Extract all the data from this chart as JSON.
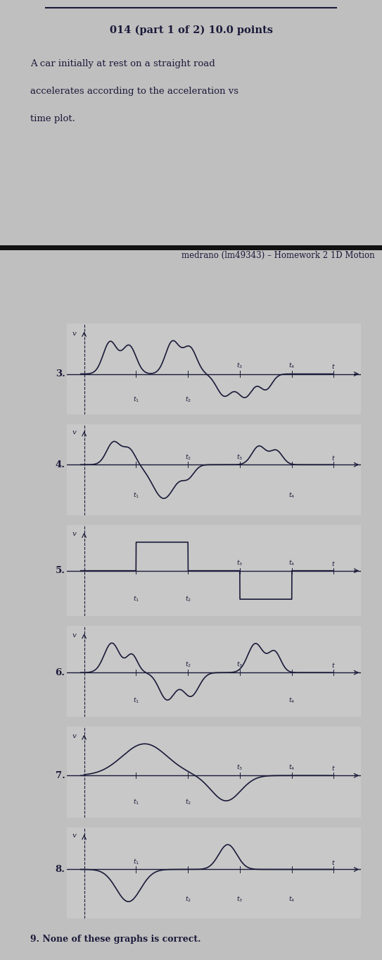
{
  "title": "014 (part 1 of 2) 10.0 points",
  "problem_text_line1": "A car initially at rest on a straight road",
  "problem_text_line2": "accelerates according to the acceleration vs",
  "problem_text_line3": "time plot.",
  "header": "medrano (lm49343) – Homework 2 1D Motion",
  "bg_top": "#c0bfbf",
  "bg_bottom": "#c8c8c8",
  "line_color": "#1a1a3a",
  "note": "9. None of these graphs is correct.",
  "t1": 1.5,
  "t2": 3.0,
  "t3": 4.5,
  "t4": 6.0,
  "tend": 7.2,
  "graph_labels": [
    "3.",
    "4.",
    "5.",
    "6.",
    "7.",
    "8."
  ]
}
